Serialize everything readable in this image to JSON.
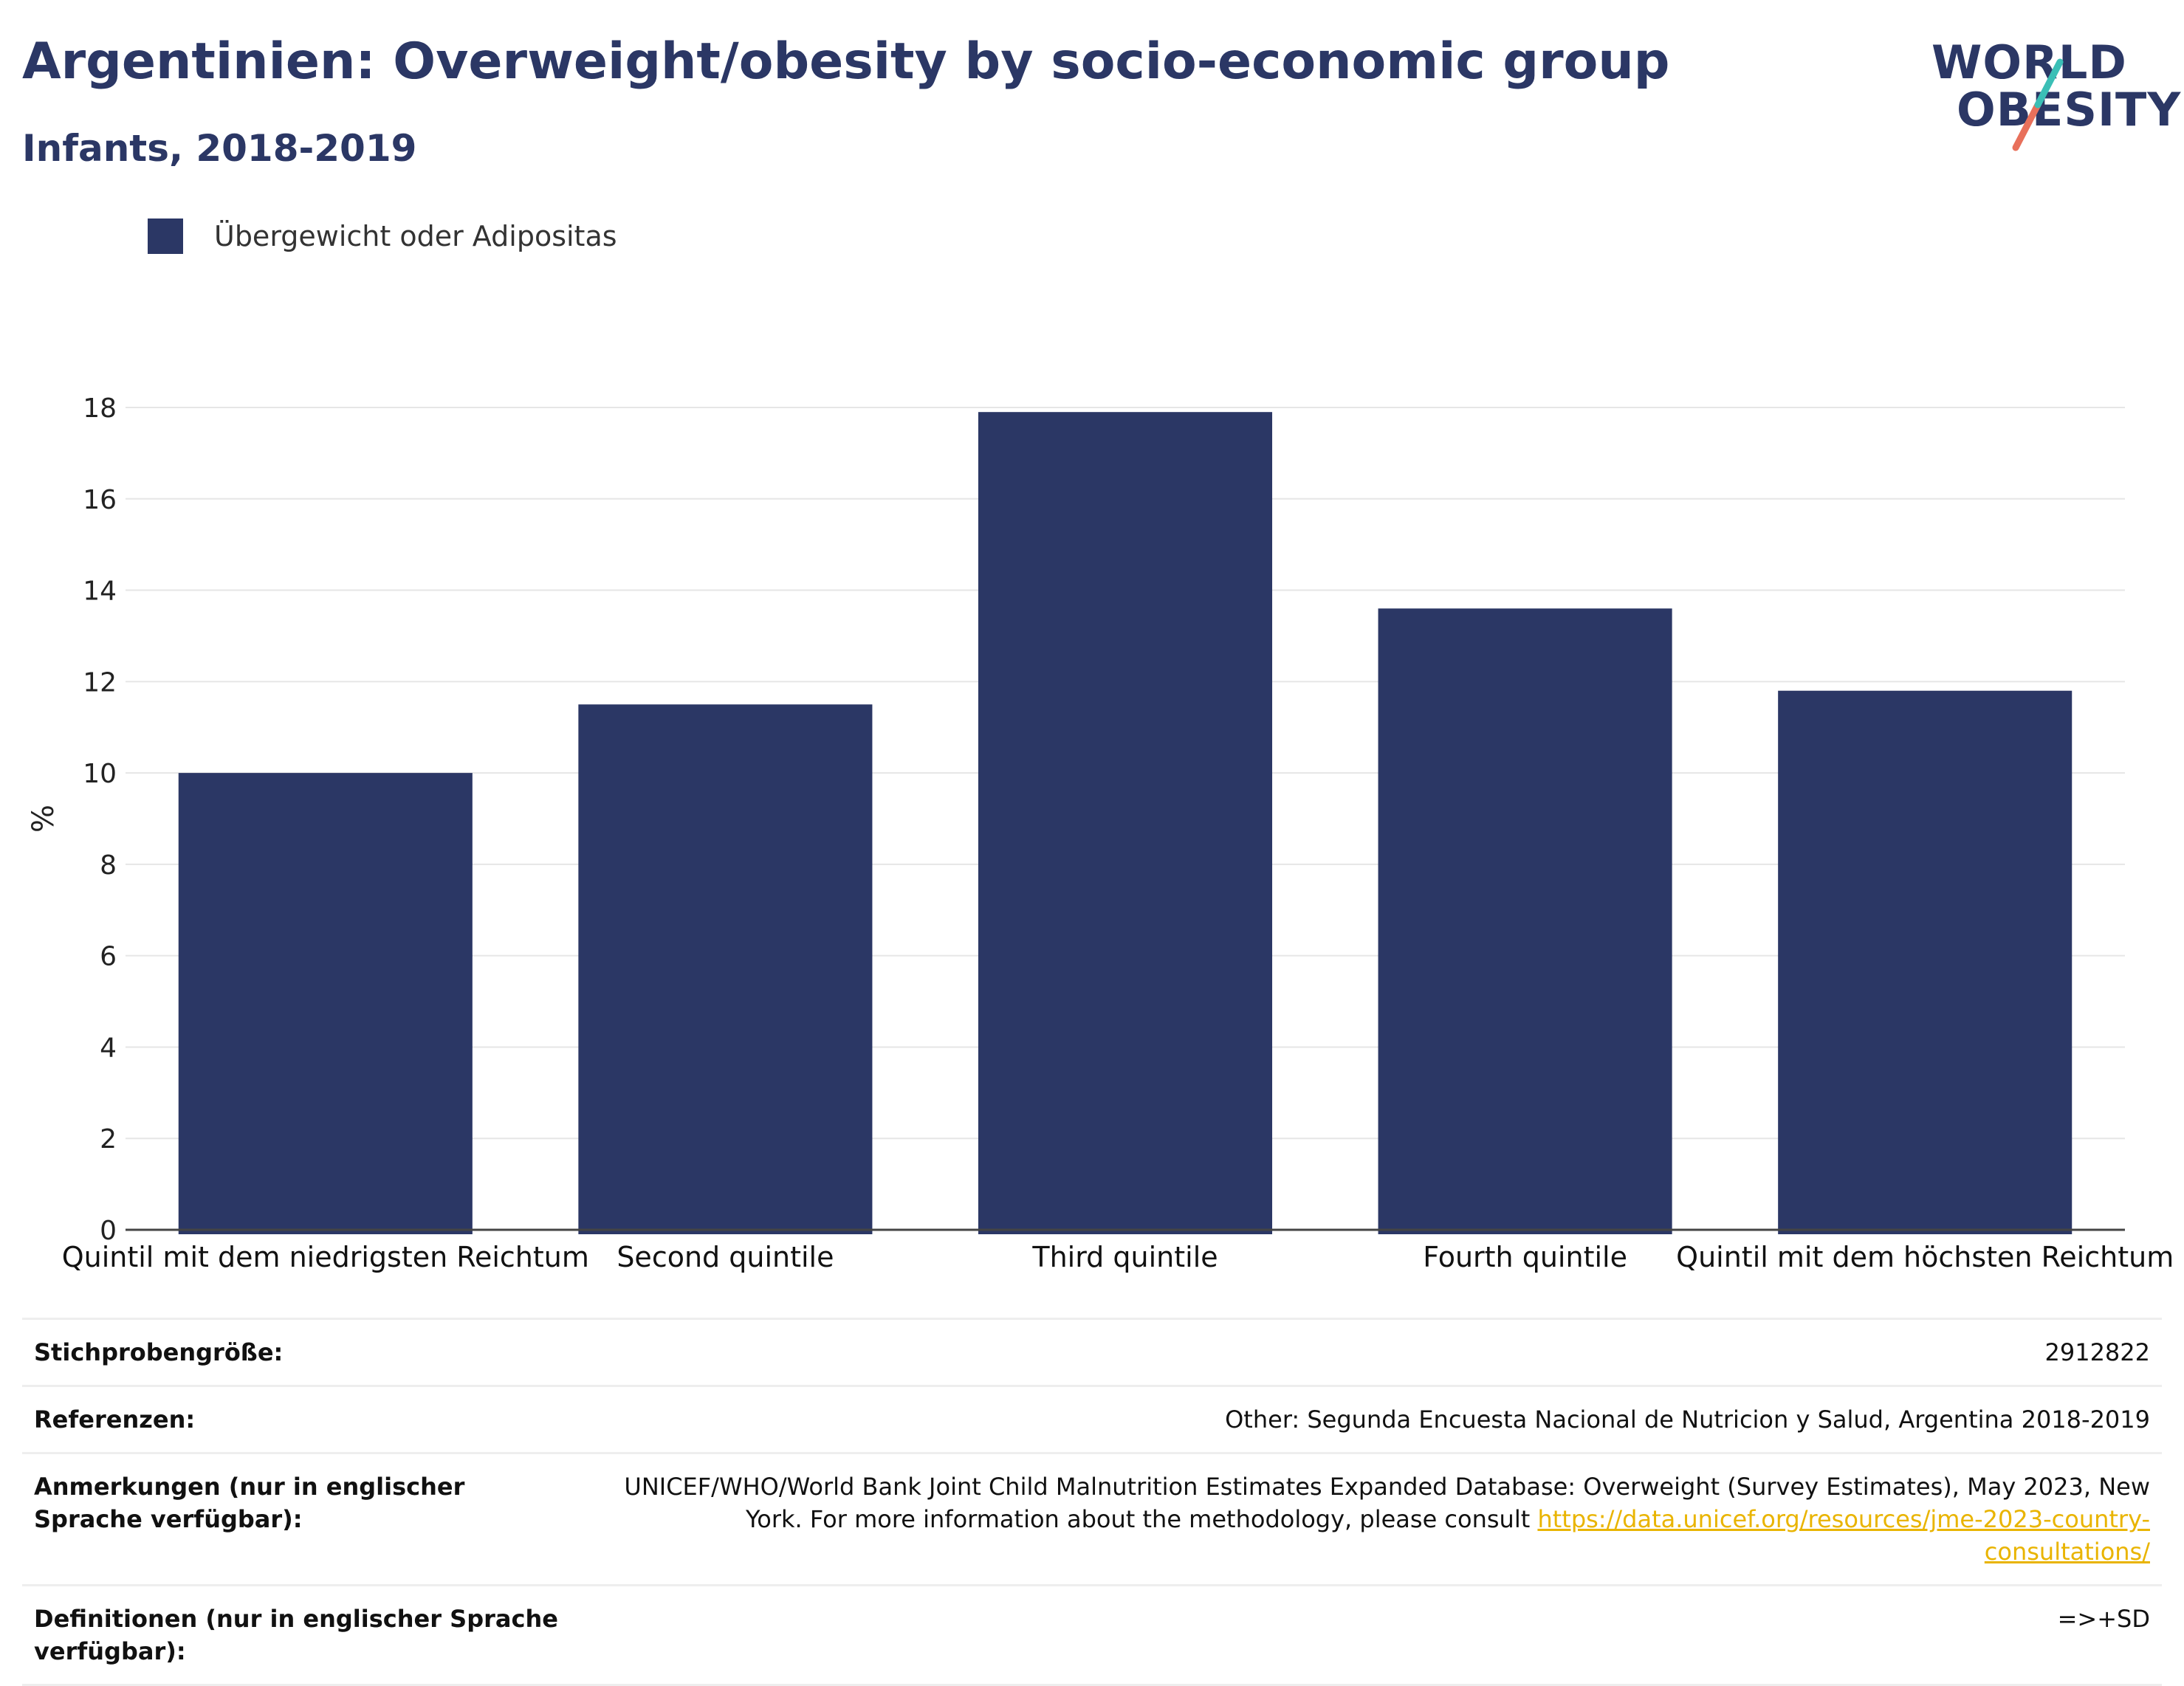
{
  "header": {
    "title": "Argentinien: Overweight/obesity by socio-economic group",
    "subtitle": "Infants, 2018-2019"
  },
  "logo": {
    "line1": "WORLD",
    "line2": "OBESITY",
    "colors": {
      "text": "#2b3765",
      "slash_top": "#3bbfb6",
      "slash_bottom": "#e8705b"
    }
  },
  "chart_data": {
    "type": "bar",
    "categories": [
      "Quintil mit dem niedrigsten Reichtum",
      "Second quintile",
      "Third quintile",
      "Fourth quintile",
      "Quintil mit dem höchsten Reichtum"
    ],
    "series": [
      {
        "name": "Übergewicht oder Adipositas",
        "values": [
          10.0,
          11.5,
          17.9,
          13.6,
          11.8
        ],
        "color": "#2b3765"
      }
    ],
    "ylabel": "%",
    "ylim": [
      0,
      18
    ],
    "yticks": [
      0,
      2,
      4,
      6,
      8,
      10,
      12,
      14,
      16,
      18
    ],
    "grid": true,
    "legend_position": "top-left"
  },
  "info": {
    "rows": [
      {
        "key": "Stichprobengröße:",
        "value": "2912822"
      },
      {
        "key": "Referenzen:",
        "value": "Other: Segunda Encuesta Nacional de Nutricion y Salud, Argentina 2018-2019"
      },
      {
        "key": "Anmerkungen (nur in englischer Sprache verfügbar):",
        "value": "UNICEF/WHO/World Bank Joint Child Malnutrition Estimates Expanded Database: Overweight (Survey Estimates), May 2023, New York. For more information about the methodology, please consult ",
        "link": "https://data.unicef.org/resources/jme-2023-country-consultations/"
      },
      {
        "key": "Definitionen (nur in englischer Sprache verfügbar):",
        "value": "=>+SD"
      }
    ]
  }
}
